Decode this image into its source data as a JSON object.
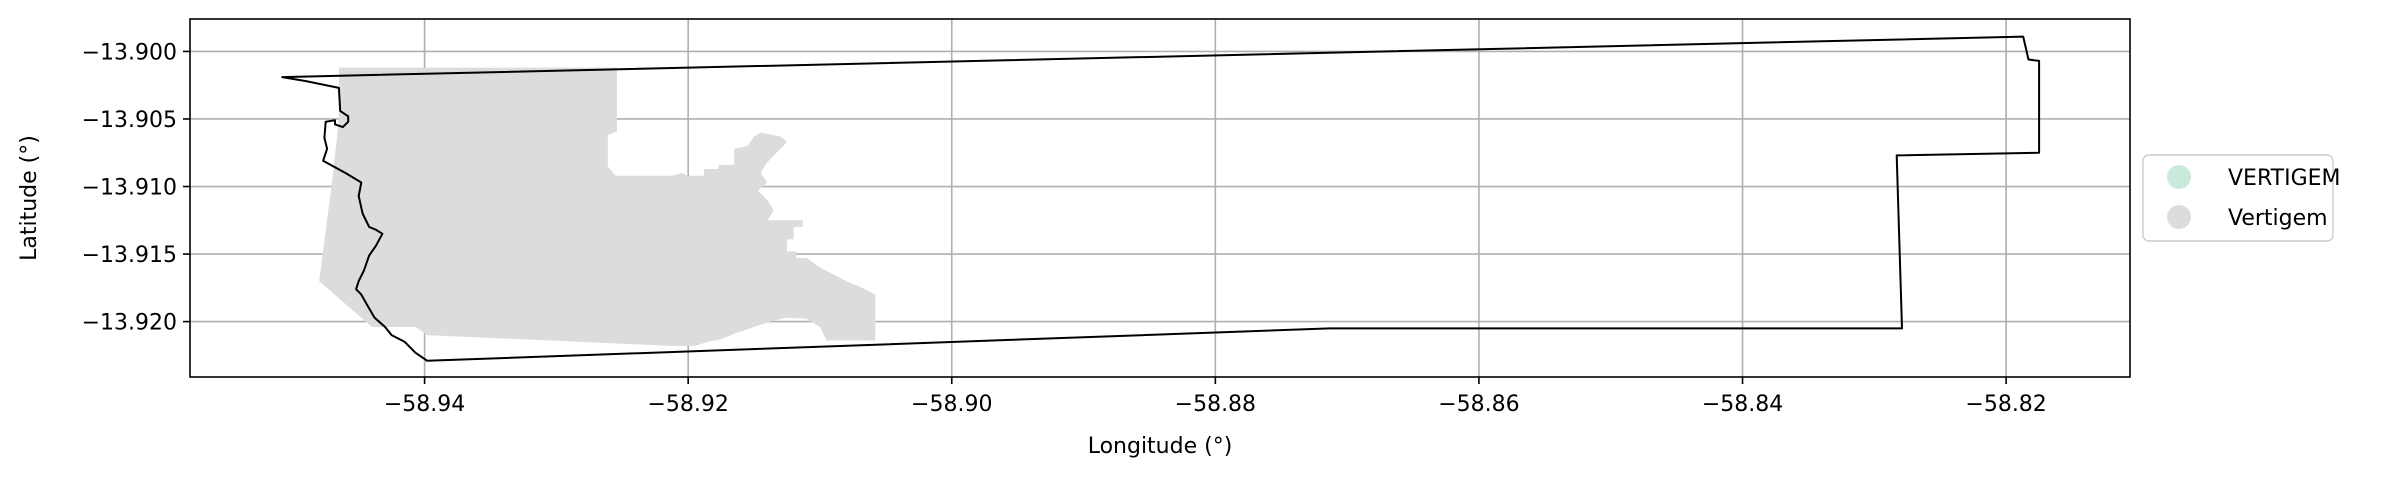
{
  "chart_data": {
    "type": "map",
    "xlabel": "Longitude (°)",
    "ylabel": "Latitude (°)",
    "xlim": [
      -58.9578,
      -58.8106
    ],
    "ylim": [
      -13.9241,
      -13.8976
    ],
    "grid": true,
    "x_ticks": [
      {
        "value": -58.94,
        "label": "−58.94"
      },
      {
        "value": -58.92,
        "label": "−58.92"
      },
      {
        "value": -58.9,
        "label": "−58.90"
      },
      {
        "value": -58.88,
        "label": "−58.88"
      },
      {
        "value": -58.86,
        "label": "−58.86"
      },
      {
        "value": -58.84,
        "label": "−58.84"
      },
      {
        "value": -58.82,
        "label": "−58.82"
      }
    ],
    "y_ticks": [
      {
        "value": -13.9,
        "label": "−13.900"
      },
      {
        "value": -13.905,
        "label": "−13.905"
      },
      {
        "value": -13.91,
        "label": "−13.910"
      },
      {
        "value": -13.915,
        "label": "−13.915"
      },
      {
        "value": -13.92,
        "label": "−13.920"
      }
    ],
    "legend": {
      "placement": "right",
      "entries": [
        {
          "label": "VERTIGEM",
          "color": "#c9eadb"
        },
        {
          "label": "Vertigem",
          "color": "#dcdcdc"
        }
      ]
    },
    "filled_region": {
      "color": "#dcdcdc",
      "polygon": [
        [
          -58.9465,
          -13.9012
        ],
        [
          -58.9254,
          -13.9012
        ],
        [
          -58.9254,
          -13.9059
        ],
        [
          -58.9261,
          -13.9062
        ],
        [
          -58.9261,
          -13.9085
        ],
        [
          -58.9255,
          -13.9092
        ],
        [
          -58.9212,
          -13.9092
        ],
        [
          -58.9205,
          -13.909
        ],
        [
          -58.92,
          -13.9092
        ],
        [
          -58.9188,
          -13.9092
        ],
        [
          -58.9188,
          -13.9087
        ],
        [
          -58.9177,
          -13.9087
        ],
        [
          -58.9177,
          -13.9084
        ],
        [
          -58.9165,
          -13.9084
        ],
        [
          -58.9165,
          -13.9072
        ],
        [
          -58.9155,
          -13.907
        ],
        [
          -58.915,
          -13.9063
        ],
        [
          -58.9145,
          -13.906
        ],
        [
          -58.913,
          -13.9063
        ],
        [
          -58.9125,
          -13.9067
        ],
        [
          -58.913,
          -13.9072
        ],
        [
          -58.914,
          -13.9082
        ],
        [
          -58.9145,
          -13.909
        ],
        [
          -58.914,
          -13.9097
        ],
        [
          -58.9147,
          -13.9103
        ],
        [
          -58.914,
          -13.911
        ],
        [
          -58.9135,
          -13.9118
        ],
        [
          -58.914,
          -13.9125
        ],
        [
          -58.9113,
          -13.9125
        ],
        [
          -58.9113,
          -13.913
        ],
        [
          -58.912,
          -13.913
        ],
        [
          -58.912,
          -13.9139
        ],
        [
          -58.9125,
          -13.9139
        ],
        [
          -58.9125,
          -13.9148
        ],
        [
          -58.9118,
          -13.9148
        ],
        [
          -58.9118,
          -13.9153
        ],
        [
          -58.911,
          -13.9153
        ],
        [
          -58.91,
          -13.916
        ],
        [
          -58.909,
          -13.9165
        ],
        [
          -58.908,
          -13.917
        ],
        [
          -58.9068,
          -13.9175
        ],
        [
          -58.9058,
          -13.918
        ],
        [
          -58.9058,
          -13.9214
        ],
        [
          -58.9095,
          -13.9214
        ],
        [
          -58.91,
          -13.9204
        ],
        [
          -58.911,
          -13.9198
        ],
        [
          -58.9125,
          -13.9197
        ],
        [
          -58.9138,
          -13.92
        ],
        [
          -58.915,
          -13.9204
        ],
        [
          -58.9165,
          -13.9209
        ],
        [
          -58.9175,
          -13.9213
        ],
        [
          -58.9185,
          -13.9215
        ],
        [
          -58.9195,
          -13.9218
        ],
        [
          -58.9213,
          -13.9218
        ],
        [
          -58.9398,
          -13.921
        ],
        [
          -58.9407,
          -13.9204
        ],
        [
          -58.944,
          -13.9204
        ],
        [
          -58.948,
          -13.917
        ],
        [
          -58.947,
          -13.9095
        ],
        [
          -58.9465,
          -13.905
        ]
      ]
    },
    "outline": {
      "color": "#000000",
      "polygon": [
        [
          -58.9508,
          -13.9019
        ],
        [
          -58.8187,
          -13.8989
        ],
        [
          -58.8183,
          -13.9006
        ],
        [
          -58.8175,
          -13.9007
        ],
        [
          -58.8175,
          -13.9075
        ],
        [
          -58.8283,
          -13.9077
        ],
        [
          -58.8279,
          -13.9205
        ],
        [
          -58.8713,
          -13.9205
        ],
        [
          -58.9398,
          -13.9229
        ],
        [
          -58.9407,
          -13.9223
        ],
        [
          -58.9415,
          -13.9215
        ],
        [
          -58.9425,
          -13.921
        ],
        [
          -58.943,
          -13.9204
        ],
        [
          -58.9438,
          -13.9197
        ],
        [
          -58.9444,
          -13.9187
        ],
        [
          -58.9448,
          -13.918
        ],
        [
          -58.9452,
          -13.9176
        ],
        [
          -58.945,
          -13.917
        ],
        [
          -58.9446,
          -13.9162
        ],
        [
          -58.9442,
          -13.9151
        ],
        [
          -58.9437,
          -13.9144
        ],
        [
          -58.9432,
          -13.9135
        ],
        [
          -58.9437,
          -13.9132
        ],
        [
          -58.9442,
          -13.913
        ],
        [
          -58.9447,
          -13.912
        ],
        [
          -58.945,
          -13.9107
        ],
        [
          -58.9448,
          -13.9097
        ],
        [
          -58.946,
          -13.909
        ],
        [
          -58.9477,
          -13.9081
        ],
        [
          -58.9474,
          -13.9072
        ],
        [
          -58.9476,
          -13.9064
        ],
        [
          -58.9475,
          -13.9052
        ],
        [
          -58.9468,
          -13.9051
        ],
        [
          -58.9468,
          -13.9054
        ],
        [
          -58.9462,
          -13.9056
        ],
        [
          -58.9458,
          -13.9052
        ],
        [
          -58.9458,
          -13.9048
        ],
        [
          -58.9464,
          -13.9044
        ],
        [
          -58.9465,
          -13.9027
        ],
        [
          -58.949,
          -13.9022
        ],
        [
          -58.9508,
          -13.9019
        ]
      ]
    }
  }
}
